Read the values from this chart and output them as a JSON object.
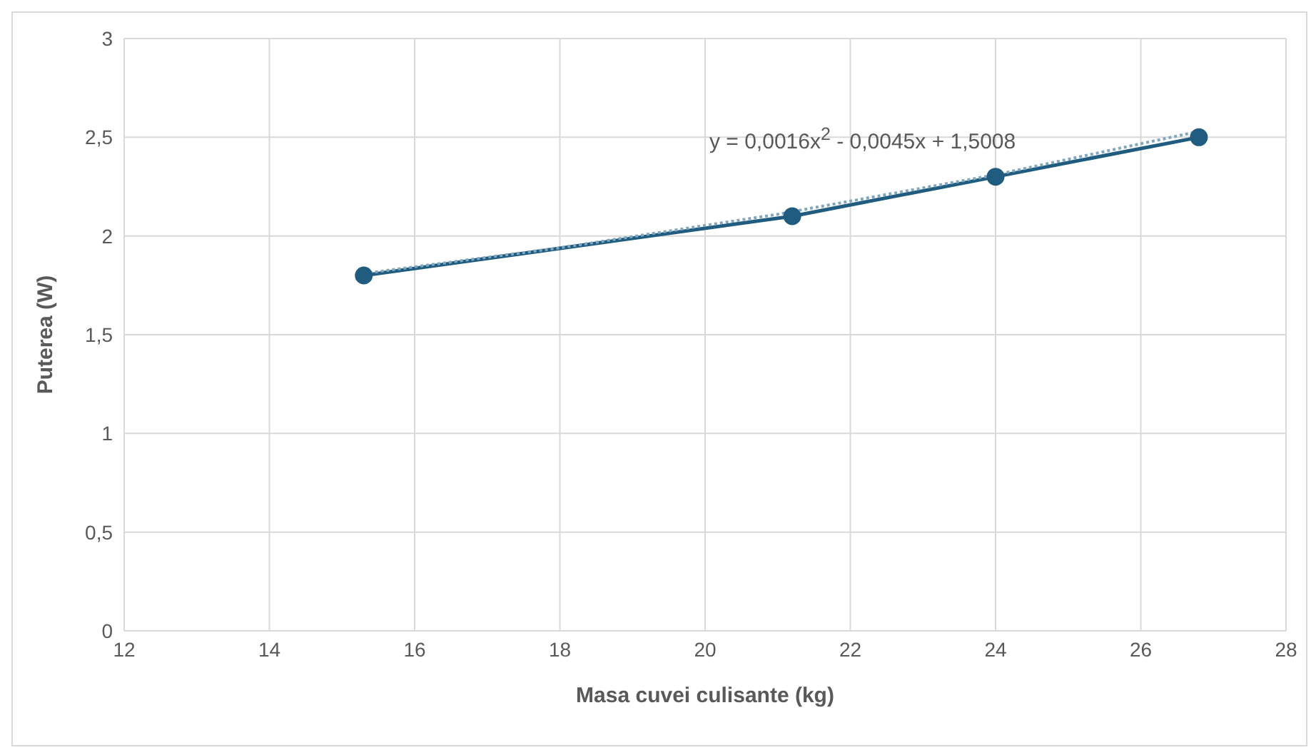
{
  "chart_data": {
    "type": "line",
    "xlabel": "Masa cuvei culisante (kg)",
    "ylabel": "Puterea (W)",
    "series": [
      {
        "color": "#1f5c7f",
        "marker": "circle",
        "line_style": "solid",
        "x": [
          15.3,
          21.2,
          24,
          26.8
        ],
        "values": [
          1.8,
          2.1,
          2.3,
          2.5
        ]
      },
      {
        "color": "#7fa7c0",
        "marker": "none",
        "line_style": "dotted",
        "x": [
          15.3,
          18,
          21,
          24,
          26.8
        ],
        "values": [
          1.81,
          1.94,
          2.11,
          2.31,
          2.53
        ]
      }
    ],
    "annotations": [
      "y = 0,0016x$^{2}$ - 0,0045x + 1,5008"
    ],
    "xlim": [
      12,
      28
    ],
    "xticks": [
      12,
      14,
      16,
      18,
      20,
      22,
      24,
      26,
      28
    ],
    "ylim": [
      0,
      3
    ],
    "yticks": [
      0,
      {
        "value": 0.5,
        "label": "0,5"
      },
      1,
      {
        "value": 1.5,
        "label": "1,5"
      },
      2,
      {
        "value": 2.5,
        "label": "2,5"
      },
      3
    ],
    "grid": true,
    "legend": false
  }
}
